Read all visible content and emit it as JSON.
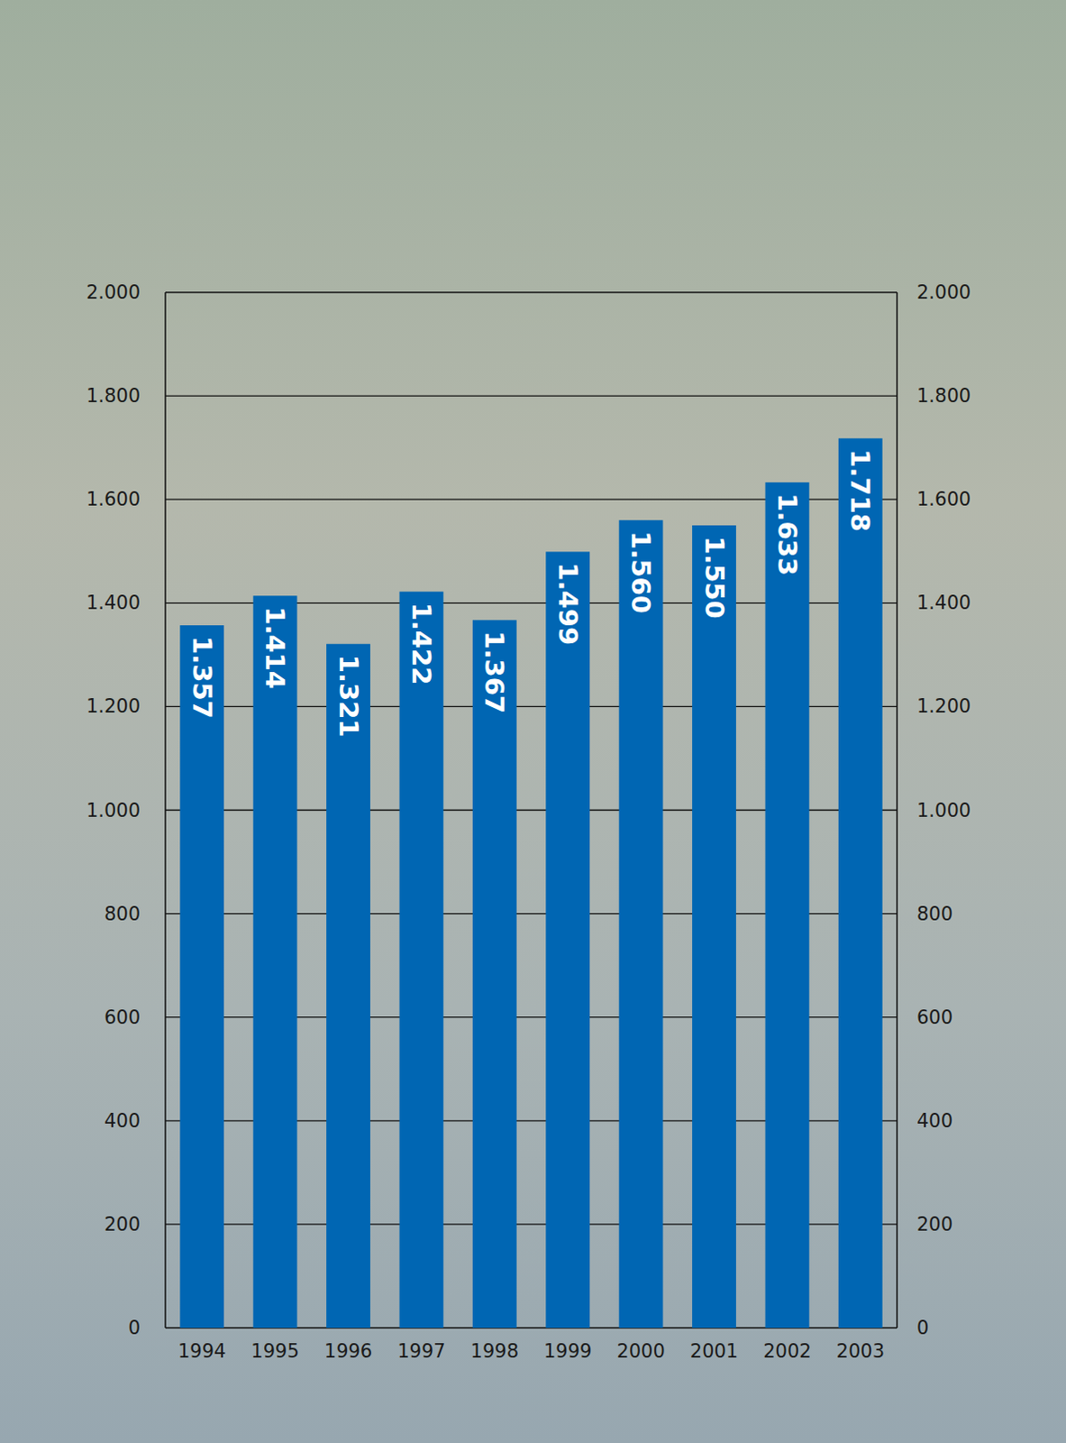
{
  "chart_data": {
    "type": "bar",
    "categories": [
      "1994",
      "1995",
      "1996",
      "1997",
      "1998",
      "1999",
      "2000",
      "2001",
      "2002",
      "2003"
    ],
    "values": [
      1357,
      1414,
      1321,
      1422,
      1367,
      1499,
      1560,
      1550,
      1633,
      1718
    ],
    "value_labels": [
      "1.357",
      "1.414",
      "1.321",
      "1.422",
      "1.367",
      "1.499",
      "1.560",
      "1.550",
      "1.633",
      "1.718"
    ],
    "color": "#0066b3",
    "ylim": [
      0,
      2000
    ],
    "yticks": [
      0,
      200,
      400,
      600,
      800,
      {
        "value": 1000,
        "label": "1.000"
      },
      {
        "value": 1200,
        "label": "1.200"
      },
      {
        "value": 1400,
        "label": "1.400"
      },
      {
        "value": 1600,
        "label": "1.600"
      },
      {
        "value": 1800,
        "label": "1.800"
      },
      {
        "value": 2000,
        "label": "2.000"
      }
    ],
    "grid": true,
    "data_labels": true
  }
}
